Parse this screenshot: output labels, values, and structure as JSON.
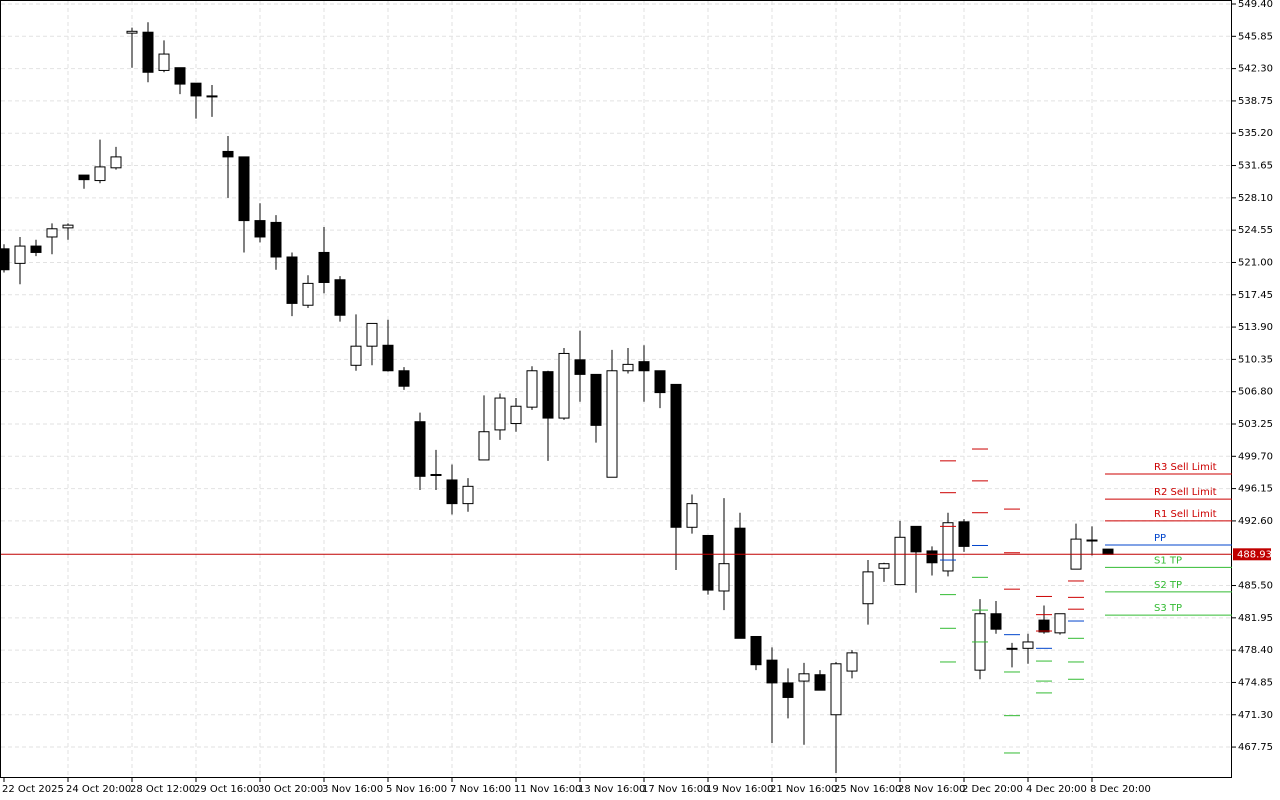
{
  "chart_data": {
    "type": "candlestick",
    "categories": [
      "22 Oct 2025",
      null,
      null,
      null,
      "24 Oct 20:00",
      null,
      null,
      null,
      "28 Oct 12:00",
      null,
      null,
      null,
      "29 Oct 16:00",
      null,
      null,
      null,
      "30 Oct 20:00",
      null,
      null,
      null,
      "3 Nov 16:00",
      null,
      null,
      null,
      "5 Nov 16:00",
      null,
      null,
      null,
      "7 Nov 16:00",
      null,
      null,
      null,
      "11 Nov 16:00",
      null,
      null,
      null,
      "13 Nov 16:00",
      null,
      null,
      null,
      "17 Nov 16:00",
      null,
      null,
      null,
      "19 Nov 16:00",
      null,
      null,
      null,
      "21 Nov 16:00",
      null,
      null,
      null,
      "25 Nov 16:00",
      null,
      null,
      null,
      "28 Nov 16:00",
      null,
      null,
      null,
      "2 Dec 20:00",
      null,
      null,
      null,
      "4 Dec 20:00",
      null,
      null,
      null,
      "8 Dec 20:00",
      null
    ],
    "open": [
      522.5,
      520.9,
      522.8,
      523.8,
      524.8,
      530.6,
      530.0,
      531.4,
      546.2,
      546.3,
      542.1,
      542.4,
      540.7,
      539.3,
      533.2,
      532.6,
      525.6,
      525.4,
      521.6,
      516.3,
      522.1,
      519.1,
      509.7,
      511.8,
      511.9,
      509.1,
      503.5,
      497.7,
      497.1,
      494.5,
      499.3,
      502.6,
      503.3,
      505.1,
      509.0,
      503.9,
      510.3,
      508.7,
      497.4,
      509.1,
      510.1,
      509.1,
      507.6,
      491.9,
      491.0,
      484.9,
      491.8,
      479.9,
      477.3,
      474.8,
      475.0,
      475.7,
      471.3,
      476.1,
      483.5,
      487.4,
      485.6,
      492.0,
      489.3,
      487.1,
      492.5,
      476.2,
      482.4,
      478.6,
      478.6,
      481.7,
      480.3,
      487.3,
      490.4,
      489.5
    ],
    "high": [
      523.0,
      523.8,
      523.5,
      525.3,
      525.3,
      530.6,
      534.5,
      533.7,
      546.8,
      547.4,
      545.4,
      542.4,
      540.7,
      540.5,
      534.9,
      532.6,
      527.5,
      526.2,
      522.1,
      519.6,
      524.9,
      519.5,
      515.3,
      514.3,
      514.7,
      509.5,
      504.5,
      500.4,
      498.8,
      497.3,
      506.4,
      506.6,
      506.1,
      509.6,
      509.1,
      511.6,
      513.5,
      508.7,
      511.4,
      511.6,
      511.9,
      509.1,
      507.6,
      495.5,
      491.0,
      495.1,
      493.5,
      479.9,
      478.7,
      476.4,
      477.0,
      476.2,
      477.1,
      478.4,
      488.3,
      488.0,
      492.6,
      492.0,
      489.8,
      493.5,
      492.8,
      484.0,
      483.8,
      479.2,
      480.2,
      483.3,
      482.4,
      492.3,
      492.0,
      489.5
    ],
    "low": [
      519.9,
      518.6,
      521.7,
      521.9,
      523.5,
      529.1,
      529.7,
      531.2,
      542.4,
      540.8,
      541.9,
      539.5,
      536.8,
      537.0,
      528.1,
      522.1,
      523.2,
      520.2,
      515.1,
      516.0,
      517.6,
      514.5,
      509.1,
      509.7,
      509.0,
      507.0,
      496.0,
      496.0,
      493.3,
      493.6,
      499.3,
      501.5,
      502.4,
      504.8,
      499.2,
      503.7,
      505.7,
      501.2,
      497.4,
      508.8,
      505.7,
      505.0,
      487.2,
      491.2,
      484.5,
      482.8,
      479.7,
      476.2,
      468.2,
      470.9,
      468.0,
      474.0,
      464.9,
      475.3,
      481.2,
      485.9,
      485.6,
      484.7,
      486.6,
      486.5,
      489.2,
      475.2,
      480.2,
      476.5,
      476.9,
      480.2,
      480.1,
      487.3,
      488.8,
      488.9
    ],
    "close": [
      520.2,
      522.8,
      522.1,
      524.7,
      525.1,
      530.1,
      531.5,
      532.6,
      546.4,
      541.9,
      543.9,
      540.6,
      539.3,
      539.2,
      532.6,
      525.6,
      523.8,
      521.6,
      516.5,
      518.7,
      518.8,
      515.2,
      511.8,
      514.3,
      509.1,
      507.4,
      497.5,
      497.6,
      494.5,
      496.4,
      502.4,
      506.1,
      505.2,
      509.1,
      503.9,
      511.0,
      508.7,
      503.1,
      509.1,
      509.8,
      509.1,
      506.7,
      491.9,
      494.5,
      485.0,
      487.9,
      479.7,
      476.8,
      474.8,
      473.2,
      475.8,
      474.0,
      476.9,
      478.1,
      487.0,
      487.9,
      490.8,
      489.2,
      488.0,
      492.4,
      489.8,
      482.4,
      480.7,
      478.5,
      479.3,
      480.4,
      482.4,
      490.6,
      490.5,
      488.93
    ],
    "up_color": "#ffffff",
    "down_color": "#000000",
    "ylim": [
      464.35,
      549.84
    ],
    "yticks": [
      {
        "value": 549.4,
        "label": "549.40"
      },
      {
        "value": 545.85,
        "label": "545.85"
      },
      {
        "value": 542.3,
        "label": "542.30"
      },
      {
        "value": 538.75,
        "label": "538.75"
      },
      {
        "value": 535.2,
        "label": "535.20"
      },
      {
        "value": 531.65,
        "label": "531.65"
      },
      {
        "value": 528.1,
        "label": "528.10"
      },
      {
        "value": 524.55,
        "label": "524.55"
      },
      {
        "value": 521,
        "label": "521.00"
      },
      {
        "value": 517.45,
        "label": "517.45"
      },
      {
        "value": 513.9,
        "label": "513.90"
      },
      {
        "value": 510.35,
        "label": "510.35"
      },
      {
        "value": 506.8,
        "label": "506.80"
      },
      {
        "value": 503.25,
        "label": "503.25"
      },
      {
        "value": 499.7,
        "label": "499.70"
      },
      {
        "value": 496.15,
        "label": "496.15"
      },
      {
        "value": 492.6,
        "label": "492.60"
      },
      {
        "value": 485.5,
        "label": "485.50"
      },
      {
        "value": 481.95,
        "label": "481.95"
      },
      {
        "value": 478.4,
        "label": "478.40"
      },
      {
        "value": 474.85,
        "label": "474.85"
      },
      {
        "value": 471.3,
        "label": "471.30"
      },
      {
        "value": 467.75,
        "label": "467.75"
      }
    ],
    "grid": true,
    "last_price": 488.93,
    "last_price_color": "#c00000",
    "levels": [
      {
        "label": "R3 Sell Limit",
        "value": 497.75,
        "color": "#cc0000",
        "history": [
          null,
          null,
          null,
          null,
          null,
          null,
          null,
          null,
          null,
          null,
          null,
          null,
          null,
          null,
          null,
          null,
          null,
          null,
          null,
          null,
          null,
          null,
          null,
          null,
          null,
          null,
          null,
          null,
          null,
          null,
          null,
          null,
          null,
          null,
          null,
          null,
          null,
          null,
          null,
          null,
          null,
          null,
          null,
          null,
          null,
          null,
          null,
          null,
          null,
          null,
          null,
          null,
          null,
          null,
          null,
          null,
          null,
          null,
          null,
          499.2,
          null,
          500.5,
          null,
          493.9,
          null,
          484.3,
          null,
          486.0,
          null,
          null
        ]
      },
      {
        "label": "R2 Sell Limit",
        "value": 495.0,
        "color": "#cc0000",
        "history": [
          null,
          null,
          null,
          null,
          null,
          null,
          null,
          null,
          null,
          null,
          null,
          null,
          null,
          null,
          null,
          null,
          null,
          null,
          null,
          null,
          null,
          null,
          null,
          null,
          null,
          null,
          null,
          null,
          null,
          null,
          null,
          null,
          null,
          null,
          null,
          null,
          null,
          null,
          null,
          null,
          null,
          null,
          null,
          null,
          null,
          null,
          null,
          null,
          null,
          null,
          null,
          null,
          null,
          null,
          null,
          null,
          null,
          null,
          null,
          495.7,
          null,
          497.0,
          null,
          489.1,
          null,
          482.3,
          null,
          484.2,
          null,
          null
        ]
      },
      {
        "label": "R1 Sell Limit",
        "value": 492.6,
        "color": "#cc0000",
        "history": [
          null,
          null,
          null,
          null,
          null,
          null,
          null,
          null,
          null,
          null,
          null,
          null,
          null,
          null,
          null,
          null,
          null,
          null,
          null,
          null,
          null,
          null,
          null,
          null,
          null,
          null,
          null,
          null,
          null,
          null,
          null,
          null,
          null,
          null,
          null,
          null,
          null,
          null,
          null,
          null,
          null,
          null,
          null,
          null,
          null,
          null,
          null,
          null,
          null,
          null,
          null,
          null,
          null,
          null,
          null,
          null,
          null,
          null,
          null,
          492.0,
          null,
          493.5,
          null,
          485.1,
          null,
          480.5,
          null,
          482.9,
          null,
          null
        ]
      },
      {
        "label": "PP",
        "value": 489.95,
        "color": "#0044cc",
        "history": [
          null,
          null,
          null,
          null,
          null,
          null,
          null,
          null,
          null,
          null,
          null,
          null,
          null,
          null,
          null,
          null,
          null,
          null,
          null,
          null,
          null,
          null,
          null,
          null,
          null,
          null,
          null,
          null,
          null,
          null,
          null,
          null,
          null,
          null,
          null,
          null,
          null,
          null,
          null,
          null,
          null,
          null,
          null,
          null,
          null,
          null,
          null,
          null,
          null,
          null,
          null,
          null,
          null,
          null,
          null,
          null,
          null,
          null,
          null,
          488.3,
          null,
          489.9,
          null,
          480.1,
          null,
          478.6,
          null,
          481.6,
          null,
          null
        ]
      },
      {
        "label": "S1 TP",
        "value": 487.5,
        "color": "#33bb33",
        "history": [
          null,
          null,
          null,
          null,
          null,
          null,
          null,
          null,
          null,
          null,
          null,
          null,
          null,
          null,
          null,
          null,
          null,
          null,
          null,
          null,
          null,
          null,
          null,
          null,
          null,
          null,
          null,
          null,
          null,
          null,
          null,
          null,
          null,
          null,
          null,
          null,
          null,
          null,
          null,
          null,
          null,
          null,
          null,
          null,
          null,
          null,
          null,
          null,
          null,
          null,
          null,
          null,
          null,
          null,
          null,
          null,
          null,
          null,
          null,
          484.5,
          null,
          486.4,
          null,
          476.0,
          null,
          477.2,
          null,
          479.7,
          null,
          null
        ]
      },
      {
        "label": "S2 TP",
        "value": 484.8,
        "color": "#33bb33",
        "history": [
          null,
          null,
          null,
          null,
          null,
          null,
          null,
          null,
          null,
          null,
          null,
          null,
          null,
          null,
          null,
          null,
          null,
          null,
          null,
          null,
          null,
          null,
          null,
          null,
          null,
          null,
          null,
          null,
          null,
          null,
          null,
          null,
          null,
          null,
          null,
          null,
          null,
          null,
          null,
          null,
          null,
          null,
          null,
          null,
          null,
          null,
          null,
          null,
          null,
          null,
          null,
          null,
          null,
          null,
          null,
          null,
          null,
          null,
          null,
          480.8,
          null,
          482.8,
          null,
          471.2,
          null,
          475.0,
          null,
          477.1,
          null,
          null
        ]
      },
      {
        "label": "S3 TP",
        "value": 482.25,
        "color": "#33bb33",
        "history": [
          null,
          null,
          null,
          null,
          null,
          null,
          null,
          null,
          null,
          null,
          null,
          null,
          null,
          null,
          null,
          null,
          null,
          null,
          null,
          null,
          null,
          null,
          null,
          null,
          null,
          null,
          null,
          null,
          null,
          null,
          null,
          null,
          null,
          null,
          null,
          null,
          null,
          null,
          null,
          null,
          null,
          null,
          null,
          null,
          null,
          null,
          null,
          null,
          null,
          null,
          null,
          null,
          null,
          null,
          null,
          null,
          null,
          null,
          null,
          477.1,
          null,
          479.3,
          null,
          467.1,
          null,
          473.7,
          null,
          475.2,
          null,
          null
        ]
      }
    ]
  }
}
